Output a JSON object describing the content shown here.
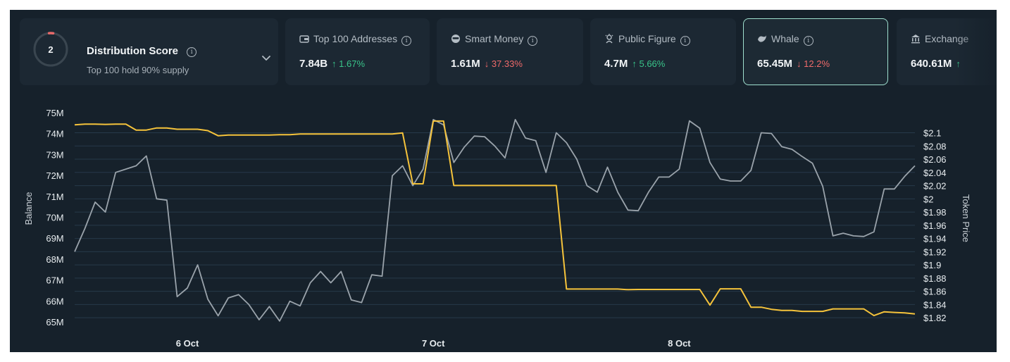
{
  "distribution": {
    "score": "2",
    "title": "Distribution Score",
    "subtitle": "Top 100 hold 90% supply",
    "ring_color": "#e86a6a"
  },
  "metrics": [
    {
      "id": "top100",
      "icon": "wallet-icon",
      "label": "Top 100 Addresses",
      "value": "7.84B",
      "change": "1.67%",
      "direction": "up"
    },
    {
      "id": "smart",
      "icon": "smart-money-icon",
      "label": "Smart Money",
      "value": "1.61M",
      "change": "37.33%",
      "direction": "down"
    },
    {
      "id": "public",
      "icon": "public-figure-icon",
      "label": "Public Figure",
      "value": "4.7M",
      "change": "5.66%",
      "direction": "up"
    },
    {
      "id": "whale",
      "icon": "whale-icon",
      "label": "Whale",
      "value": "65.45M",
      "change": "12.2%",
      "direction": "down"
    },
    {
      "id": "exchange",
      "icon": "exchange-icon",
      "label": "Exchange",
      "value": "640.61M",
      "change": "",
      "direction": "up"
    }
  ],
  "colors": {
    "balance_line": "#f5c33b",
    "price_line": "#9aa3ab",
    "up": "#39c48a",
    "down": "#ef6a6a",
    "selected_border": "#9fe0cf"
  },
  "chart_data": {
    "type": "line",
    "x_ticks": [
      "6 Oct",
      "7 Oct",
      "8 Oct"
    ],
    "x_tick_positions": [
      11,
      35,
      59
    ],
    "y_left": {
      "label": "Balance",
      "range": [
        65,
        75
      ],
      "ticks": [
        "65M",
        "66M",
        "67M",
        "68M",
        "69M",
        "70M",
        "71M",
        "72M",
        "73M",
        "74M",
        "75M"
      ]
    },
    "y_right": {
      "label": "Token Price",
      "range": [
        1.8138,
        2.1304
      ],
      "ticks": [
        "$1.82",
        "$1.84",
        "$1.86",
        "$1.88",
        "$1.9",
        "$1.92",
        "$1.94",
        "$1.96",
        "$1.98",
        "$2",
        "$2.02",
        "$2.04",
        "$2.06",
        "$2.08",
        "$2.1"
      ]
    },
    "x_count": 83,
    "series": [
      {
        "name": "Balance",
        "axis": "left",
        "values": [
          74.42,
          74.45,
          74.45,
          74.44,
          74.45,
          74.45,
          74.17,
          74.17,
          74.27,
          74.27,
          74.21,
          74.21,
          74.21,
          74.14,
          73.9,
          73.93,
          73.93,
          73.93,
          73.93,
          73.93,
          73.95,
          73.95,
          73.98,
          73.98,
          73.98,
          73.98,
          73.98,
          73.98,
          73.98,
          73.98,
          73.98,
          73.98,
          74.03,
          71.6,
          71.6,
          74.6,
          74.6,
          71.52,
          71.52,
          71.52,
          71.52,
          71.52,
          71.52,
          71.52,
          71.52,
          71.52,
          71.52,
          71.52,
          66.57,
          66.57,
          66.57,
          66.57,
          66.57,
          66.57,
          66.54,
          66.55,
          66.55,
          66.55,
          66.55,
          66.55,
          66.55,
          66.55,
          65.8,
          66.58,
          66.58,
          66.58,
          65.7,
          65.7,
          65.6,
          65.55,
          65.55,
          65.5,
          65.5,
          65.5,
          65.62,
          65.62,
          65.62,
          65.62,
          65.3,
          65.48,
          65.45,
          65.43,
          65.38
        ]
      },
      {
        "name": "Token Price",
        "axis": "right",
        "values": [
          1.92,
          1.955,
          1.995,
          1.98,
          2.04,
          2.045,
          2.05,
          2.065,
          2.0,
          1.998,
          1.852,
          1.865,
          1.9,
          1.848,
          1.823,
          1.85,
          1.855,
          1.84,
          1.817,
          1.837,
          1.815,
          1.845,
          1.838,
          1.873,
          1.89,
          1.873,
          1.89,
          1.847,
          1.843,
          1.885,
          1.883,
          2.035,
          2.05,
          2.02,
          2.045,
          2.12,
          2.112,
          2.055,
          2.078,
          2.095,
          2.094,
          2.08,
          2.062,
          2.12,
          2.092,
          2.088,
          2.04,
          2.1,
          2.085,
          2.06,
          2.02,
          2.01,
          2.048,
          2.01,
          1.983,
          1.982,
          2.01,
          2.033,
          2.033,
          2.045,
          2.118,
          2.107,
          2.055,
          2.03,
          2.027,
          2.027,
          2.043,
          2.1,
          2.099,
          2.079,
          2.075,
          2.064,
          2.054,
          2.019,
          1.944,
          1.948,
          1.944,
          1.943,
          1.95,
          2.015,
          2.015,
          2.034,
          2.05
        ]
      }
    ]
  }
}
